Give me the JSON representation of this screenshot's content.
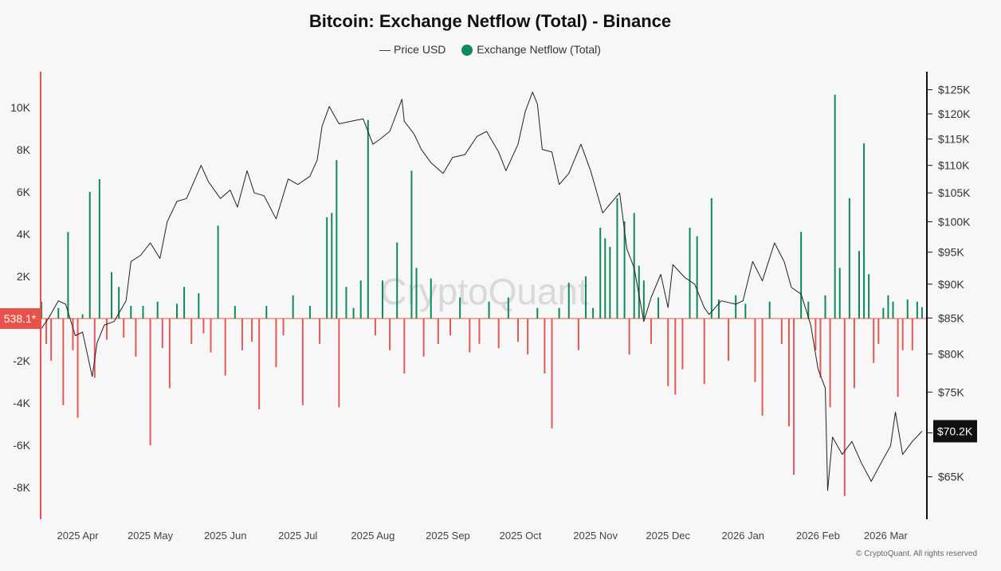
{
  "chart_data": {
    "type": "bar+line",
    "title": "Bitcoin: Exchange Netflow (Total) - Binance",
    "legend": [
      {
        "name": "Price USD",
        "marker": "line",
        "color": "#444444"
      },
      {
        "name": "Exchange Netflow (Total)",
        "marker": "dot",
        "color": "#0e8a5a"
      }
    ],
    "watermark": "CryptoQuant",
    "footer": "© CryptoQuant. All rights reserved",
    "x_axis": {
      "range": [
        "2025-03-17",
        "2026-03-18"
      ],
      "ticks": [
        {
          "date": "2025-04-01",
          "label": "2025 Apr"
        },
        {
          "date": "2025-05-01",
          "label": "2025 May"
        },
        {
          "date": "2025-06-01",
          "label": "2025 Jun"
        },
        {
          "date": "2025-07-01",
          "label": "2025 Jul"
        },
        {
          "date": "2025-08-01",
          "label": "2025 Aug"
        },
        {
          "date": "2025-09-01",
          "label": "2025 Sep"
        },
        {
          "date": "2025-10-01",
          "label": "2025 Oct"
        },
        {
          "date": "2025-11-01",
          "label": "2025 Nov"
        },
        {
          "date": "2025-12-01",
          "label": "2025 Dec"
        },
        {
          "date": "2026-01-01",
          "label": "2026 Jan"
        },
        {
          "date": "2026-02-01",
          "label": "2026 Feb"
        },
        {
          "date": "2026-03-01",
          "label": "2026 Mar"
        }
      ]
    },
    "y_left": {
      "name": "Exchange Netflow (Total)",
      "range": [
        -9500,
        11500
      ],
      "ticks": [
        -8000,
        -6000,
        -4000,
        -2000,
        0,
        2000,
        4000,
        6000,
        8000,
        10000
      ],
      "tick_labels": [
        "-8K",
        "-6K",
        "-4K",
        "-2K",
        "0",
        "2K",
        "4K",
        "6K",
        "8K",
        "10K"
      ],
      "current_label": "538.1*",
      "current_label_color": "#e8524a"
    },
    "y_right": {
      "name": "Price USD",
      "scale": "log",
      "range": [
        60500,
        128000
      ],
      "ticks": [
        65000,
        70000,
        75000,
        80000,
        85000,
        90000,
        95000,
        100000,
        105000,
        110000,
        115000,
        120000,
        125000
      ],
      "tick_labels": [
        "$65K",
        "$70K",
        "$75K",
        "$80K",
        "$85K",
        "$90K",
        "$95K",
        "$100K",
        "$105K",
        "$110K",
        "$115K",
        "$120K",
        "$125K"
      ],
      "current_label": "$70.2K",
      "current_value": 70200
    },
    "colors": {
      "inflow": "#0e8a5a",
      "outflow": "#e15a55",
      "price": "#222222"
    },
    "price_series": [
      [
        "2025-03-17",
        83500
      ],
      [
        "2025-03-20",
        85000
      ],
      [
        "2025-03-24",
        87500
      ],
      [
        "2025-03-27",
        87000
      ],
      [
        "2025-03-31",
        82500
      ],
      [
        "2025-04-03",
        83000
      ],
      [
        "2025-04-07",
        77000
      ],
      [
        "2025-04-09",
        81500
      ],
      [
        "2025-04-12",
        84000
      ],
      [
        "2025-04-16",
        84500
      ],
      [
        "2025-04-21",
        87500
      ],
      [
        "2025-04-23",
        93500
      ],
      [
        "2025-04-27",
        94500
      ],
      [
        "2025-05-01",
        96500
      ],
      [
        "2025-05-05",
        94000
      ],
      [
        "2025-05-08",
        100000
      ],
      [
        "2025-05-12",
        103500
      ],
      [
        "2025-05-16",
        104000
      ],
      [
        "2025-05-22",
        110000
      ],
      [
        "2025-05-25",
        107000
      ],
      [
        "2025-05-30",
        104000
      ],
      [
        "2025-06-03",
        105500
      ],
      [
        "2025-06-06",
        102500
      ],
      [
        "2025-06-10",
        109000
      ],
      [
        "2025-06-13",
        105000
      ],
      [
        "2025-06-17",
        104500
      ],
      [
        "2025-06-22",
        100500
      ],
      [
        "2025-06-27",
        107500
      ],
      [
        "2025-07-01",
        106500
      ],
      [
        "2025-07-06",
        108000
      ],
      [
        "2025-07-09",
        111000
      ],
      [
        "2025-07-11",
        117500
      ],
      [
        "2025-07-14",
        121500
      ],
      [
        "2025-07-18",
        118000
      ],
      [
        "2025-07-23",
        118500
      ],
      [
        "2025-07-28",
        119000
      ],
      [
        "2025-08-01",
        114000
      ],
      [
        "2025-08-04",
        115000
      ],
      [
        "2025-08-08",
        116500
      ],
      [
        "2025-08-13",
        123000
      ],
      [
        "2025-08-14",
        118500
      ],
      [
        "2025-08-18",
        116000
      ],
      [
        "2025-08-21",
        113000
      ],
      [
        "2025-08-25",
        110500
      ],
      [
        "2025-08-30",
        108500
      ],
      [
        "2025-09-03",
        111500
      ],
      [
        "2025-09-08",
        112000
      ],
      [
        "2025-09-13",
        115500
      ],
      [
        "2025-09-17",
        116500
      ],
      [
        "2025-09-22",
        112500
      ],
      [
        "2025-09-25",
        109000
      ],
      [
        "2025-09-30",
        114000
      ],
      [
        "2025-10-03",
        120500
      ],
      [
        "2025-10-06",
        124500
      ],
      [
        "2025-10-08",
        122000
      ],
      [
        "2025-10-10",
        113000
      ],
      [
        "2025-10-14",
        112500
      ],
      [
        "2025-10-17",
        106500
      ],
      [
        "2025-10-21",
        108500
      ],
      [
        "2025-10-26",
        114000
      ],
      [
        "2025-10-30",
        109000
      ],
      [
        "2025-11-04",
        101500
      ],
      [
        "2025-11-07",
        103000
      ],
      [
        "2025-11-11",
        105000
      ],
      [
        "2025-11-14",
        95500
      ],
      [
        "2025-11-17",
        92500
      ],
      [
        "2025-11-21",
        84500
      ],
      [
        "2025-11-24",
        88000
      ],
      [
        "2025-11-28",
        91500
      ],
      [
        "2025-12-01",
        86500
      ],
      [
        "2025-12-03",
        93000
      ],
      [
        "2025-12-08",
        91000
      ],
      [
        "2025-12-12",
        90000
      ],
      [
        "2025-12-16",
        86500
      ],
      [
        "2025-12-18",
        85500
      ],
      [
        "2025-12-23",
        87500
      ],
      [
        "2025-12-29",
        87000
      ],
      [
        "2026-01-01",
        87500
      ],
      [
        "2026-01-05",
        93500
      ],
      [
        "2026-01-09",
        90500
      ],
      [
        "2026-01-14",
        96500
      ],
      [
        "2026-01-18",
        93500
      ],
      [
        "2026-01-21",
        89500
      ],
      [
        "2026-01-25",
        88500
      ],
      [
        "2026-01-29",
        84000
      ],
      [
        "2026-02-01",
        78000
      ],
      [
        "2026-02-04",
        75500
      ],
      [
        "2026-02-05",
        63500
      ],
      [
        "2026-02-07",
        69500
      ],
      [
        "2026-02-11",
        67500
      ],
      [
        "2026-02-15",
        69000
      ],
      [
        "2026-02-19",
        66500
      ],
      [
        "2026-02-23",
        64500
      ],
      [
        "2026-02-27",
        66500
      ],
      [
        "2026-03-03",
        68500
      ],
      [
        "2026-03-05",
        72500
      ],
      [
        "2026-03-08",
        67500
      ],
      [
        "2026-03-12",
        69000
      ],
      [
        "2026-03-16",
        70200
      ]
    ],
    "netflow_series": [
      [
        "2025-03-17",
        800
      ],
      [
        "2025-03-19",
        -1200
      ],
      [
        "2025-03-21",
        -2000
      ],
      [
        "2025-03-24",
        500
      ],
      [
        "2025-03-26",
        -4100
      ],
      [
        "2025-03-28",
        4100
      ],
      [
        "2025-03-30",
        -1500
      ],
      [
        "2025-04-01",
        -4700
      ],
      [
        "2025-04-03",
        200
      ],
      [
        "2025-04-06",
        6000
      ],
      [
        "2025-04-08",
        -2800
      ],
      [
        "2025-04-10",
        6600
      ],
      [
        "2025-04-13",
        -1000
      ],
      [
        "2025-04-15",
        2200
      ],
      [
        "2025-04-18",
        1500
      ],
      [
        "2025-04-20",
        -900
      ],
      [
        "2025-04-23",
        600
      ],
      [
        "2025-04-25",
        -1800
      ],
      [
        "2025-04-28",
        600
      ],
      [
        "2025-05-01",
        -6000
      ],
      [
        "2025-05-04",
        800
      ],
      [
        "2025-05-06",
        -1400
      ],
      [
        "2025-05-09",
        -3300
      ],
      [
        "2025-05-12",
        700
      ],
      [
        "2025-05-15",
        1500
      ],
      [
        "2025-05-18",
        -1200
      ],
      [
        "2025-05-21",
        1200
      ],
      [
        "2025-05-23",
        -700
      ],
      [
        "2025-05-26",
        -1600
      ],
      [
        "2025-05-29",
        4400
      ],
      [
        "2025-06-01",
        -2700
      ],
      [
        "2025-06-05",
        600
      ],
      [
        "2025-06-08",
        -1500
      ],
      [
        "2025-06-12",
        -1100
      ],
      [
        "2025-06-15",
        -4300
      ],
      [
        "2025-06-18",
        600
      ],
      [
        "2025-06-22",
        -2300
      ],
      [
        "2025-06-25",
        -800
      ],
      [
        "2025-06-29",
        1100
      ],
      [
        "2025-07-03",
        -4100
      ],
      [
        "2025-07-06",
        600
      ],
      [
        "2025-07-10",
        -1200
      ],
      [
        "2025-07-13",
        4800
      ],
      [
        "2025-07-15",
        5000
      ],
      [
        "2025-07-17",
        7500
      ],
      [
        "2025-07-18",
        -4200
      ],
      [
        "2025-07-21",
        1500
      ],
      [
        "2025-07-24",
        500
      ],
      [
        "2025-07-27",
        1800
      ],
      [
        "2025-07-30",
        9400
      ],
      [
        "2025-08-02",
        -800
      ],
      [
        "2025-08-05",
        1800
      ],
      [
        "2025-08-08",
        -1500
      ],
      [
        "2025-08-11",
        3600
      ],
      [
        "2025-08-14",
        -2600
      ],
      [
        "2025-08-17",
        7000
      ],
      [
        "2025-08-19",
        2400
      ],
      [
        "2025-08-22",
        -1800
      ],
      [
        "2025-08-25",
        1900
      ],
      [
        "2025-08-28",
        -1200
      ],
      [
        "2025-09-02",
        -800
      ],
      [
        "2025-09-06",
        1000
      ],
      [
        "2025-09-10",
        -1600
      ],
      [
        "2025-09-14",
        -1200
      ],
      [
        "2025-09-18",
        800
      ],
      [
        "2025-09-22",
        -1400
      ],
      [
        "2025-09-26",
        1000
      ],
      [
        "2025-09-30",
        -1100
      ],
      [
        "2025-10-04",
        -1700
      ],
      [
        "2025-10-08",
        500
      ],
      [
        "2025-10-11",
        -2600
      ],
      [
        "2025-10-14",
        -5200
      ],
      [
        "2025-10-17",
        500
      ],
      [
        "2025-10-21",
        1700
      ],
      [
        "2025-10-25",
        -1500
      ],
      [
        "2025-10-28",
        2000
      ],
      [
        "2025-10-31",
        500
      ],
      [
        "2025-11-03",
        4300
      ],
      [
        "2025-11-05",
        3800
      ],
      [
        "2025-11-07",
        3400
      ],
      [
        "2025-11-10",
        5700
      ],
      [
        "2025-11-13",
        4600
      ],
      [
        "2025-11-15",
        -1700
      ],
      [
        "2025-11-17",
        5000
      ],
      [
        "2025-11-19",
        2500
      ],
      [
        "2025-11-21",
        1800
      ],
      [
        "2025-11-24",
        -1200
      ],
      [
        "2025-11-27",
        1000
      ],
      [
        "2025-12-01",
        -3200
      ],
      [
        "2025-12-04",
        -3600
      ],
      [
        "2025-12-07",
        -2400
      ],
      [
        "2025-12-10",
        4300
      ],
      [
        "2025-12-13",
        3900
      ],
      [
        "2025-12-16",
        -3100
      ],
      [
        "2025-12-19",
        5700
      ],
      [
        "2025-12-22",
        900
      ],
      [
        "2025-12-26",
        -2000
      ],
      [
        "2025-12-29",
        1100
      ],
      [
        "2026-01-02",
        700
      ],
      [
        "2026-01-06",
        -3000
      ],
      [
        "2026-01-09",
        -4600
      ],
      [
        "2026-01-12",
        800
      ],
      [
        "2026-01-17",
        -1200
      ],
      [
        "2026-01-20",
        -5100
      ],
      [
        "2026-01-22",
        -7400
      ],
      [
        "2026-01-25",
        4100
      ],
      [
        "2026-01-28",
        800
      ],
      [
        "2026-01-31",
        -1500
      ],
      [
        "2026-02-02",
        -2800
      ],
      [
        "2026-02-04",
        1100
      ],
      [
        "2026-02-06",
        -4200
      ],
      [
        "2026-02-08",
        10600
      ],
      [
        "2026-02-10",
        2400
      ],
      [
        "2026-02-12",
        -8400
      ],
      [
        "2026-02-14",
        5700
      ],
      [
        "2026-02-16",
        -3300
      ],
      [
        "2026-02-18",
        3200
      ],
      [
        "2026-02-20",
        8300
      ],
      [
        "2026-02-22",
        2100
      ],
      [
        "2026-02-24",
        -2100
      ],
      [
        "2026-02-26",
        -1200
      ],
      [
        "2026-02-28",
        500
      ],
      [
        "2026-03-02",
        1100
      ],
      [
        "2026-03-04",
        800
      ],
      [
        "2026-03-06",
        -3700
      ],
      [
        "2026-03-08",
        -1500
      ],
      [
        "2026-03-10",
        900
      ],
      [
        "2026-03-12",
        -1500
      ],
      [
        "2026-03-14",
        800
      ],
      [
        "2026-03-16",
        538
      ]
    ]
  }
}
